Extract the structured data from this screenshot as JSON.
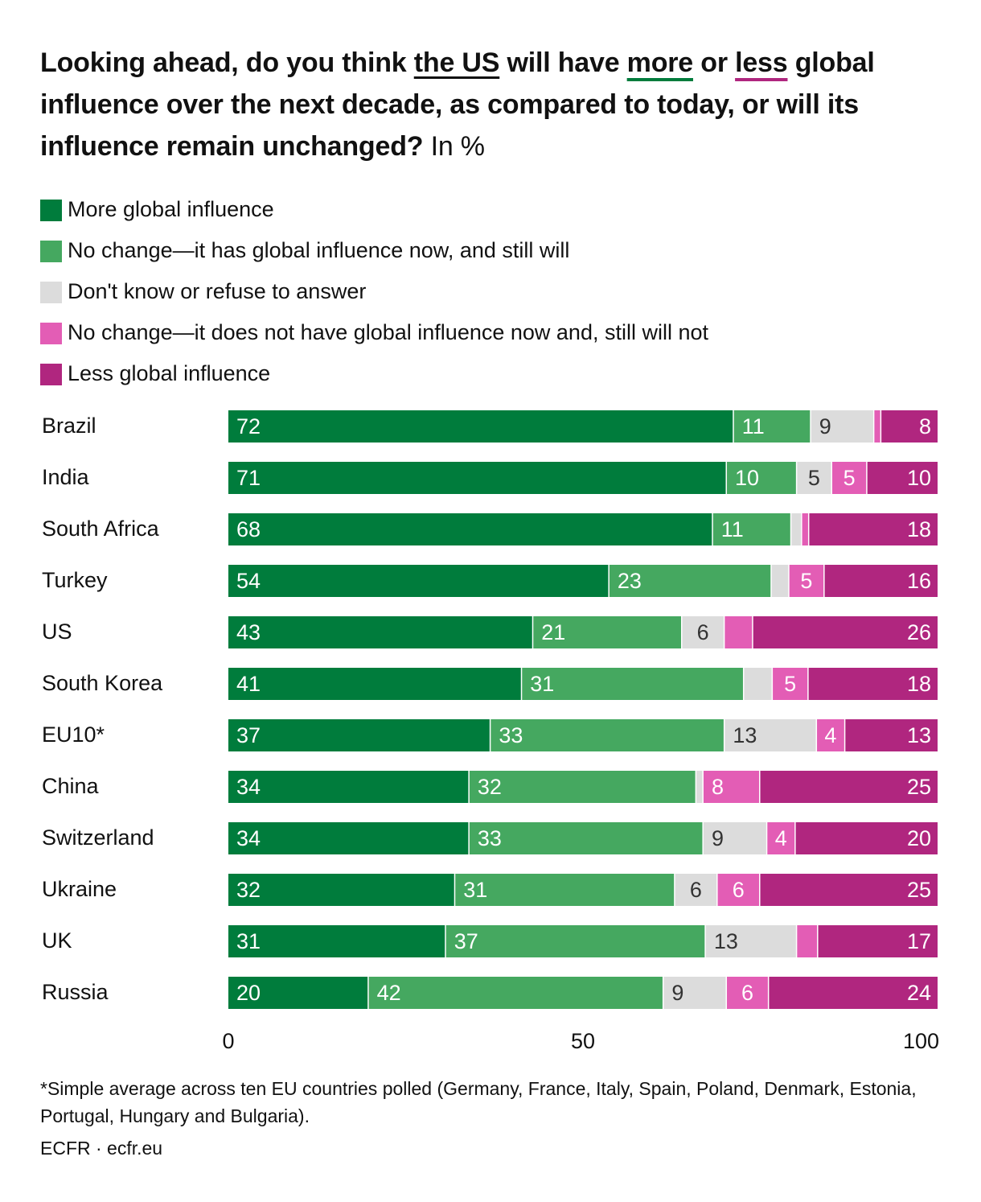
{
  "title": {
    "part1": "Looking ahead, do you think ",
    "us": "the US",
    "part2": " will have ",
    "more": "more",
    "part3": " or ",
    "less": "less",
    "part4": " global influence over the next decade, as compared to today, or will its influence remain unchanged?",
    "unit": " In %"
  },
  "colors": {
    "more": "#007c3c",
    "no_change_has": "#45a860",
    "dont_know": "#dcdcdc",
    "no_change_not": "#e35db5",
    "less": "#b0267f"
  },
  "chart_data": {
    "type": "bar",
    "orientation": "horizontal",
    "stacked": true,
    "categories": [
      "Brazil",
      "India",
      "South Africa",
      "Turkey",
      "US",
      "South Korea",
      "EU10*",
      "China",
      "Switzerland",
      "Ukraine",
      "UK",
      "Russia"
    ],
    "series": [
      {
        "name": "More global influence",
        "color": "#007c3c",
        "label_color": "#ffffff",
        "values": [
          72,
          71,
          68,
          54,
          43,
          41,
          37,
          34,
          34,
          32,
          31,
          20
        ]
      },
      {
        "name": "No change—it has global influence now, and still will",
        "color": "#45a860",
        "label_color": "#ffffff",
        "values": [
          11,
          10,
          11,
          23,
          21,
          31,
          33,
          32,
          33,
          31,
          37,
          42
        ]
      },
      {
        "name": "Don't know or refuse to answer",
        "color": "#dcdcdc",
        "label_color": "#333333",
        "values": [
          9,
          5,
          1.5,
          2.5,
          6,
          4,
          13,
          1,
          9,
          6,
          13,
          9
        ]
      },
      {
        "name": "No change—it does not have global influence now and, still will not",
        "color": "#e35db5",
        "label_color": "#ffffff",
        "values": [
          1,
          5,
          1,
          5,
          4,
          5,
          4,
          8,
          4,
          6,
          3,
          6
        ]
      },
      {
        "name": "Less global influence",
        "color": "#b0267f",
        "label_color": "#ffffff",
        "values": [
          8,
          10,
          18,
          16,
          26,
          18,
          13,
          25,
          20,
          25,
          17,
          24
        ]
      }
    ],
    "data_labels": [
      [
        "72",
        "11",
        "9",
        "",
        "8"
      ],
      [
        "71",
        "10",
        "5",
        "5",
        "10"
      ],
      [
        "68",
        "11",
        "",
        "",
        "18"
      ],
      [
        "54",
        "23",
        "",
        "5",
        "16"
      ],
      [
        "43",
        "21",
        "6",
        "",
        "26"
      ],
      [
        "41",
        "31",
        "",
        "5",
        "18"
      ],
      [
        "37",
        "33",
        "13",
        "4",
        "13"
      ],
      [
        "34",
        "32",
        "",
        "8",
        "25"
      ],
      [
        "34",
        "33",
        "9",
        "4",
        "20"
      ],
      [
        "32",
        "31",
        "6",
        "6",
        "25"
      ],
      [
        "31",
        "37",
        "13",
        "",
        "17"
      ],
      [
        "20",
        "42",
        "9",
        "6",
        "24"
      ]
    ],
    "xlim": [
      0,
      100
    ],
    "xticks": [
      0,
      50,
      100
    ],
    "grid": false,
    "legend_position": "top-left"
  },
  "footnote": "*Simple average across ten EU countries polled (Germany, France, Italy, Spain, Poland, Denmark, Estonia, Portugal, Hungary and Bulgaria).",
  "source": "ECFR · ecfr.eu"
}
